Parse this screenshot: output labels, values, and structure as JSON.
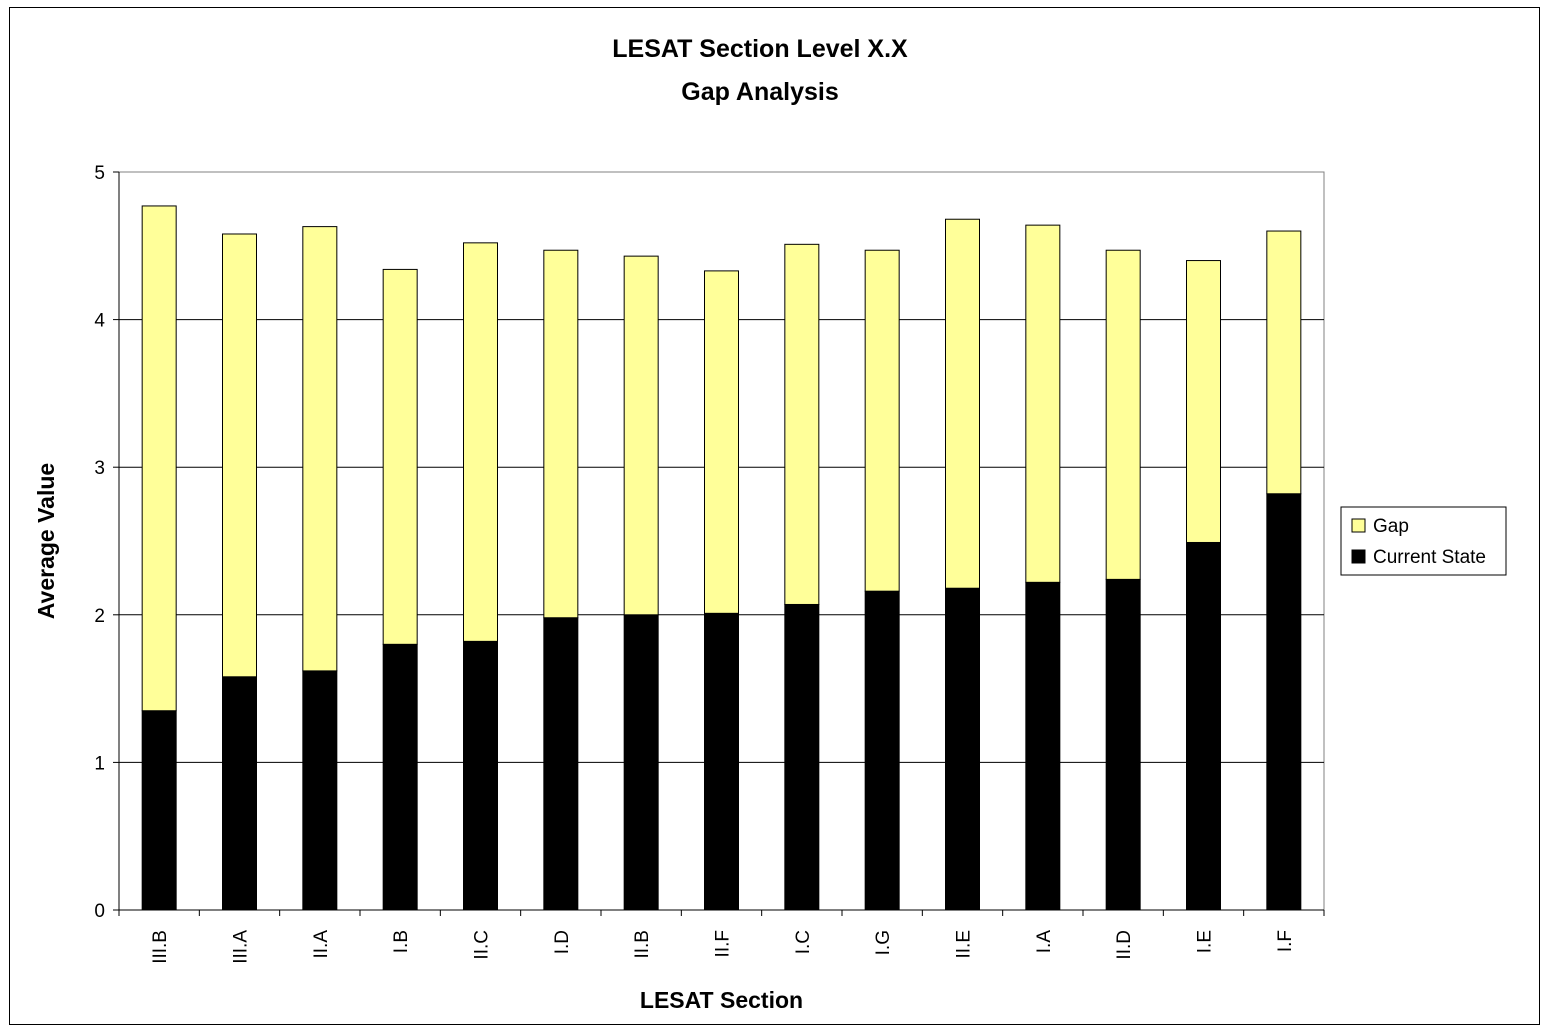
{
  "chart_data": {
    "type": "bar",
    "stacked": true,
    "title": [
      "LESAT Section Level X.X",
      "Gap Analysis"
    ],
    "xlabel": "LESAT Section",
    "ylabel": "Average Value",
    "ylim": [
      0,
      5
    ],
    "yticks": [
      "0",
      "1",
      "2",
      "3",
      "4",
      "5"
    ],
    "grid": "horizontal",
    "legend_position": "right",
    "categories": [
      "III.B",
      "III.A",
      "II.A",
      "I.B",
      "II.C",
      "I.D",
      "II.B",
      "II.F",
      "I.C",
      "I.G",
      "II.E",
      "I.A",
      "II.D",
      "I.E",
      "I.F"
    ],
    "series": [
      {
        "name": "Current State",
        "color": "#000000",
        "values": [
          1.35,
          1.58,
          1.62,
          1.8,
          1.82,
          1.98,
          2.0,
          2.01,
          2.07,
          2.16,
          2.18,
          2.22,
          2.24,
          2.49,
          2.82
        ]
      },
      {
        "name": "Gap",
        "color": "#FFFF99",
        "values": [
          3.42,
          3.0,
          3.01,
          2.54,
          2.7,
          2.49,
          2.43,
          2.32,
          2.44,
          2.31,
          2.5,
          2.42,
          2.23,
          1.91,
          1.78
        ]
      }
    ],
    "legend_order": [
      "Gap",
      "Current State"
    ]
  }
}
